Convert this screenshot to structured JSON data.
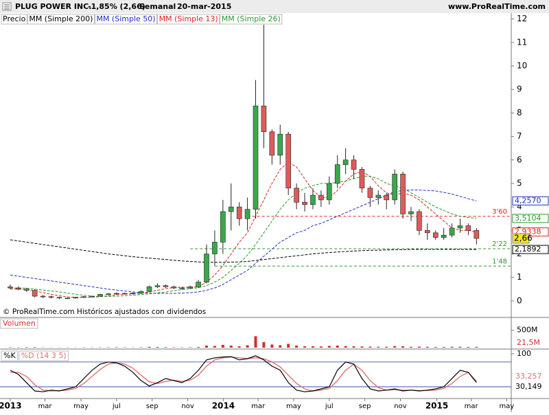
{
  "header": {
    "title": "PLUG POWER INC.",
    "change": "-1,85% (2,66)",
    "period": "Semanal",
    "date": "20-mar-2015",
    "site": "www.ProRealTime.com"
  },
  "chart_data": [
    {
      "type": "candlestick",
      "price_name": "Precio",
      "note": "© ProRealTime.com  Históricos ajustados con dividendos",
      "x": [
        0,
        2,
        4,
        6,
        8,
        10,
        12,
        14,
        16,
        18,
        20,
        22,
        24,
        26,
        28,
        30,
        32,
        34,
        36,
        38,
        40,
        42,
        44,
        46,
        48,
        50,
        52,
        54,
        56,
        58,
        60,
        62,
        64,
        66,
        68,
        70,
        72,
        74,
        76,
        78,
        80,
        82,
        84,
        86,
        88,
        90,
        92,
        94,
        96,
        98,
        100,
        102,
        104,
        106,
        108,
        110,
        112,
        114
      ],
      "open": [
        0.6,
        0.55,
        0.5,
        0.45,
        0.2,
        0.18,
        0.15,
        0.12,
        0.12,
        0.15,
        0.18,
        0.2,
        0.28,
        0.3,
        0.32,
        0.3,
        0.33,
        0.4,
        0.6,
        0.65,
        0.6,
        0.55,
        0.55,
        0.6,
        0.8,
        2.0,
        2.5,
        3.8,
        4.0,
        3.5,
        3.9,
        8.3,
        7.2,
        6.2,
        7.1,
        4.8,
        4.2,
        4.1,
        4.5,
        4.3,
        5.0,
        5.8,
        6.0,
        5.6,
        4.8,
        4.4,
        4.5,
        4.3,
        5.4,
        3.7,
        3.8,
        3.0,
        2.9,
        2.7,
        2.8,
        3.1,
        3.2,
        3.0
      ],
      "high": [
        0.7,
        0.62,
        0.55,
        0.5,
        0.25,
        0.22,
        0.18,
        0.15,
        0.17,
        0.2,
        0.22,
        0.3,
        0.33,
        0.36,
        0.35,
        0.36,
        0.45,
        0.65,
        0.75,
        0.7,
        0.65,
        0.6,
        0.65,
        0.9,
        2.4,
        3.0,
        4.3,
        5.0,
        4.2,
        4.4,
        9.4,
        11.8,
        7.3,
        7.5,
        7.2,
        5.0,
        4.6,
        4.8,
        4.7,
        5.3,
        6.2,
        6.5,
        6.2,
        5.7,
        4.9,
        4.7,
        4.6,
        5.6,
        5.5,
        4.0,
        3.9,
        3.3,
        3.0,
        3.1,
        3.3,
        3.5,
        3.3,
        3.1
      ],
      "low": [
        0.5,
        0.45,
        0.38,
        0.15,
        0.12,
        0.1,
        0.08,
        0.08,
        0.1,
        0.12,
        0.15,
        0.18,
        0.24,
        0.26,
        0.27,
        0.27,
        0.3,
        0.38,
        0.55,
        0.55,
        0.5,
        0.48,
        0.5,
        0.55,
        0.75,
        1.5,
        2.0,
        3.0,
        3.2,
        3.0,
        3.5,
        6.5,
        5.8,
        5.8,
        4.5,
        3.9,
        3.8,
        3.9,
        4.0,
        4.1,
        4.8,
        5.4,
        5.2,
        4.6,
        4.0,
        4.1,
        3.9,
        4.1,
        3.5,
        3.4,
        2.8,
        2.6,
        2.6,
        2.6,
        2.7,
        2.9,
        2.8,
        2.4
      ],
      "close": [
        0.55,
        0.5,
        0.45,
        0.2,
        0.18,
        0.15,
        0.12,
        0.12,
        0.15,
        0.18,
        0.2,
        0.28,
        0.3,
        0.32,
        0.3,
        0.33,
        0.4,
        0.6,
        0.65,
        0.6,
        0.55,
        0.55,
        0.6,
        0.8,
        2.0,
        2.5,
        3.8,
        4.0,
        3.5,
        3.9,
        8.3,
        7.2,
        6.2,
        7.1,
        4.8,
        4.2,
        4.1,
        4.5,
        4.3,
        5.0,
        5.8,
        6.0,
        5.6,
        4.8,
        4.4,
        4.5,
        4.3,
        5.4,
        3.7,
        3.8,
        3.0,
        2.9,
        2.7,
        2.8,
        3.1,
        3.2,
        3.0,
        2.66
      ],
      "close_label": "2,66",
      "up_color": "#3aa84a",
      "down_color": "#e05a5a",
      "label_box_color": "#f5e52a",
      "series": [
        {
          "name": "MM (Simple 200)",
          "color": "#000000",
          "last_label": "2,1892",
          "values": [
            2.6,
            2.55,
            2.5,
            2.45,
            2.4,
            2.35,
            2.3,
            2.25,
            2.2,
            2.15,
            2.1,
            2.05,
            2.0,
            1.96,
            1.92,
            1.88,
            1.85,
            1.82,
            1.79,
            1.76,
            1.73,
            1.7,
            1.68,
            1.66,
            1.65,
            1.64,
            1.64,
            1.65,
            1.66,
            1.68,
            1.72,
            1.76,
            1.8,
            1.84,
            1.88,
            1.92,
            1.96,
            2.0,
            2.03,
            2.06,
            2.08,
            2.1,
            2.12,
            2.14,
            2.15,
            2.16,
            2.17,
            2.18,
            2.18,
            2.19,
            2.19,
            2.19,
            2.19,
            2.19,
            2.19,
            2.19,
            2.19,
            2.1892
          ]
        },
        {
          "name": "MM (Simple 50)",
          "color": "#1f2fbf",
          "last_label": "4,2570",
          "values": [
            1.1,
            1.05,
            1.0,
            0.95,
            0.9,
            0.85,
            0.8,
            0.75,
            0.7,
            0.65,
            0.6,
            0.55,
            0.5,
            0.46,
            0.42,
            0.38,
            0.35,
            0.33,
            0.32,
            0.32,
            0.32,
            0.33,
            0.35,
            0.38,
            0.45,
            0.55,
            0.7,
            0.9,
            1.1,
            1.3,
            1.6,
            1.9,
            2.2,
            2.5,
            2.7,
            2.9,
            3.0,
            3.2,
            3.3,
            3.45,
            3.6,
            3.75,
            3.9,
            4.05,
            4.2,
            4.35,
            4.5,
            4.65,
            4.7,
            4.72,
            4.72,
            4.7,
            4.68,
            4.62,
            4.55,
            4.45,
            4.35,
            4.257
          ]
        },
        {
          "name": "MM (Simple 13)",
          "color": "#e02020",
          "last_label": "2,9338",
          "values": [
            0.5,
            0.5,
            0.48,
            0.42,
            0.35,
            0.28,
            0.22,
            0.17,
            0.15,
            0.15,
            0.16,
            0.18,
            0.22,
            0.26,
            0.29,
            0.3,
            0.32,
            0.38,
            0.45,
            0.52,
            0.57,
            0.58,
            0.58,
            0.6,
            0.8,
            1.1,
            1.5,
            2.0,
            2.5,
            2.9,
            3.6,
            4.3,
            5.0,
            5.6,
            5.9,
            5.7,
            5.2,
            4.7,
            4.4,
            4.4,
            4.7,
            5.1,
            5.4,
            5.5,
            5.3,
            4.9,
            4.6,
            4.5,
            4.6,
            4.5,
            4.3,
            4.0,
            3.7,
            3.4,
            3.1,
            3.0,
            3.0,
            2.9338
          ]
        },
        {
          "name": "MM (Simple 26)",
          "color": "#2a9a2a",
          "last_label": "3,5104",
          "values": [
            0.55,
            0.55,
            0.54,
            0.5,
            0.46,
            0.42,
            0.38,
            0.33,
            0.28,
            0.24,
            0.2,
            0.19,
            0.19,
            0.2,
            0.22,
            0.24,
            0.27,
            0.3,
            0.34,
            0.38,
            0.43,
            0.48,
            0.52,
            0.56,
            0.65,
            0.8,
            1.0,
            1.3,
            1.6,
            1.95,
            2.4,
            2.9,
            3.4,
            3.9,
            4.3,
            4.6,
            4.8,
            4.9,
            5.0,
            5.0,
            5.05,
            5.1,
            5.2,
            5.3,
            5.3,
            5.2,
            5.0,
            4.9,
            4.8,
            4.6,
            4.4,
            4.2,
            4.0,
            3.85,
            3.7,
            3.6,
            3.55,
            3.5104
          ]
        }
      ],
      "levels": [
        {
          "value": 3.6,
          "label": "3'60",
          "color": "#e02020",
          "x0": 58
        },
        {
          "value": 2.22,
          "label": "2'22",
          "color": "#2a9a2a",
          "x0": 44
        },
        {
          "value": 1.48,
          "label": "1'48",
          "color": "#2a9a2a",
          "x0": 50
        }
      ],
      "ylim": [
        -0.5,
        12.4
      ],
      "yticks": [
        0,
        1,
        2,
        3,
        4,
        5,
        6,
        7,
        8,
        9,
        10,
        11,
        12
      ],
      "xlim": [
        -2.5,
        122.5
      ],
      "xticks": [
        {
          "value": 0,
          "label": "2013"
        },
        {
          "value": 8.5,
          "label": "mar"
        },
        {
          "value": 17.3,
          "label": "may"
        },
        {
          "value": 26,
          "label": "jul"
        },
        {
          "value": 34.7,
          "label": "sep"
        },
        {
          "value": 43.4,
          "label": "nov"
        },
        {
          "value": 52.1,
          "label": "2014"
        },
        {
          "value": 60.6,
          "label": "mar"
        },
        {
          "value": 69.3,
          "label": "may"
        },
        {
          "value": 78,
          "label": "jul"
        },
        {
          "value": 86.7,
          "label": "sep"
        },
        {
          "value": 95.4,
          "label": "nov"
        },
        {
          "value": 104.3,
          "label": "2015"
        },
        {
          "value": 112.7,
          "label": "mar"
        },
        {
          "value": 121.4,
          "label": "may"
        }
      ]
    },
    {
      "type": "bar",
      "title": "Volumen",
      "color": "#d03030",
      "x": [
        0,
        2,
        4,
        6,
        8,
        10,
        12,
        14,
        16,
        18,
        20,
        22,
        24,
        26,
        28,
        30,
        32,
        34,
        36,
        38,
        40,
        42,
        44,
        46,
        48,
        50,
        52,
        54,
        56,
        58,
        60,
        62,
        64,
        66,
        68,
        70,
        72,
        74,
        76,
        78,
        80,
        82,
        84,
        86,
        88,
        90,
        92,
        94,
        96,
        98,
        100,
        102,
        104,
        106,
        108,
        110,
        112,
        114
      ],
      "values": [
        10,
        8,
        12,
        15,
        8,
        6,
        5,
        6,
        5,
        7,
        6,
        8,
        10,
        12,
        8,
        6,
        10,
        25,
        20,
        15,
        10,
        8,
        12,
        20,
        60,
        50,
        80,
        60,
        40,
        70,
        330,
        160,
        90,
        70,
        110,
        60,
        40,
        40,
        35,
        50,
        60,
        45,
        40,
        35,
        30,
        25,
        25,
        45,
        40,
        25,
        30,
        25,
        20,
        20,
        25,
        25,
        20,
        21.5
      ],
      "last_label": "21,5M",
      "ylim": [
        0,
        850
      ],
      "yticks": [
        {
          "value": 500,
          "label": "500M"
        }
      ]
    },
    {
      "type": "line",
      "x": [
        0,
        2,
        4,
        6,
        8,
        10,
        12,
        14,
        16,
        18,
        20,
        22,
        24,
        26,
        28,
        30,
        32,
        34,
        36,
        38,
        40,
        42,
        44,
        46,
        48,
        50,
        52,
        54,
        56,
        58,
        60,
        62,
        64,
        66,
        68,
        70,
        72,
        74,
        76,
        78,
        80,
        82,
        84,
        86,
        88,
        90,
        92,
        94,
        96,
        98,
        100,
        102,
        104,
        106,
        108,
        110,
        112,
        114
      ],
      "series": [
        {
          "name": "%K",
          "color": "#000000",
          "last_label": "30,149",
          "values": [
            60,
            50,
            30,
            10,
            8,
            12,
            10,
            15,
            20,
            40,
            60,
            75,
            80,
            78,
            70,
            55,
            35,
            22,
            30,
            40,
            35,
            30,
            40,
            60,
            85,
            90,
            92,
            93,
            85,
            88,
            95,
            85,
            70,
            60,
            30,
            12,
            8,
            10,
            15,
            20,
            60,
            80,
            75,
            40,
            15,
            10,
            12,
            15,
            10,
            12,
            10,
            12,
            15,
            20,
            40,
            60,
            55,
            30.149
          ]
        },
        {
          "name": "%D (14 3 5)",
          "color": "#e07070",
          "last_label": "33,257",
          "values": [
            55,
            55,
            45,
            25,
            12,
            10,
            11,
            12,
            16,
            28,
            45,
            62,
            75,
            78,
            75,
            65,
            48,
            32,
            28,
            33,
            36,
            33,
            36,
            48,
            70,
            85,
            90,
            92,
            90,
            88,
            90,
            88,
            80,
            68,
            48,
            28,
            15,
            10,
            12,
            16,
            35,
            60,
            75,
            60,
            35,
            18,
            12,
            13,
            12,
            12,
            11,
            11,
            12,
            16,
            28,
            45,
            55,
            33.257
          ]
        }
      ],
      "hlines": [
        80,
        20
      ],
      "ylim": [
        -5,
        108
      ],
      "yticks": [
        100
      ]
    }
  ]
}
